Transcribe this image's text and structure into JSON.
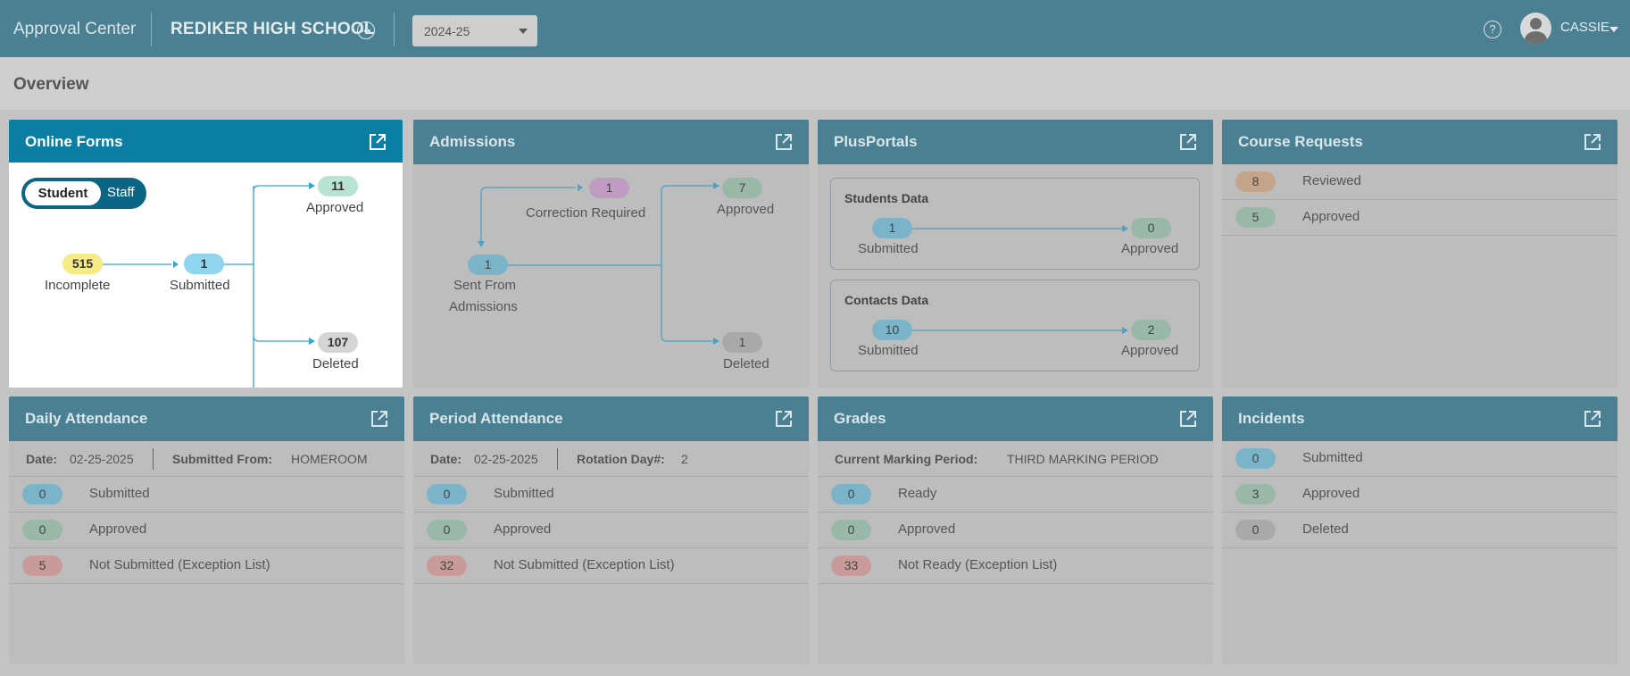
{
  "header": {
    "app_title": "Approval Center",
    "school": "REDIKER HIGH SCHOOL",
    "school_menu_icon": "more-circle-icon",
    "year": "2024-25",
    "help_icon": "help-circle-icon",
    "user": "CASSIE"
  },
  "overview": {
    "title": "Overview"
  },
  "online_forms": {
    "title": "Online Forms",
    "toggle": {
      "active": "Student",
      "inactive": "Staff"
    },
    "incomplete": {
      "count": "515",
      "label": "Incomplete"
    },
    "submitted": {
      "count": "1",
      "label": "Submitted"
    },
    "approved": {
      "count": "11",
      "label": "Approved"
    },
    "deleted": {
      "count": "107",
      "label": "Deleted"
    }
  },
  "admissions": {
    "title": "Admissions",
    "correction": {
      "count": "1",
      "label": "Correction Required"
    },
    "sent": {
      "count": "1",
      "label_line1": "Sent From",
      "label_line2": "Admissions"
    },
    "approved": {
      "count": "7",
      "label": "Approved"
    },
    "deleted": {
      "count": "1",
      "label": "Deleted"
    }
  },
  "plusportals": {
    "title": "PlusPortals",
    "students": {
      "title": "Students Data",
      "submitted_count": "1",
      "submitted_label": "Submitted",
      "approved_count": "0",
      "approved_label": "Approved"
    },
    "contacts": {
      "title": "Contacts Data",
      "submitted_count": "10",
      "submitted_label": "Submitted",
      "approved_count": "2",
      "approved_label": "Approved"
    }
  },
  "course_requests": {
    "title": "Course Requests",
    "rows": [
      {
        "count": "8",
        "label": "Reviewed"
      },
      {
        "count": "5",
        "label": "Approved"
      }
    ]
  },
  "daily_attendance": {
    "title": "Daily Attendance",
    "date_label": "Date:",
    "date": "02-25-2025",
    "from_label": "Submitted From:",
    "from": "HOMEROOM",
    "rows": [
      {
        "count": "0",
        "label": "Submitted"
      },
      {
        "count": "0",
        "label": "Approved"
      },
      {
        "count": "5",
        "label": "Not Submitted (Exception List)"
      }
    ]
  },
  "period_attendance": {
    "title": "Period Attendance",
    "date_label": "Date:",
    "date": "02-25-2025",
    "rotation_label": "Rotation Day#:",
    "rotation": "2",
    "rows": [
      {
        "count": "0",
        "label": "Submitted"
      },
      {
        "count": "0",
        "label": "Approved"
      },
      {
        "count": "32",
        "label": "Not Submitted (Exception List)"
      }
    ]
  },
  "grades": {
    "title": "Grades",
    "period_label": "Current Marking Period:",
    "period": "THIRD MARKING PERIOD",
    "rows": [
      {
        "count": "0",
        "label": "Ready"
      },
      {
        "count": "0",
        "label": "Approved"
      },
      {
        "count": "33",
        "label": "Not Ready (Exception List)"
      }
    ]
  },
  "incidents": {
    "title": "Incidents",
    "rows": [
      {
        "count": "0",
        "label": "Submitted"
      },
      {
        "count": "3",
        "label": "Approved"
      },
      {
        "count": "0",
        "label": "Deleted"
      }
    ]
  }
}
